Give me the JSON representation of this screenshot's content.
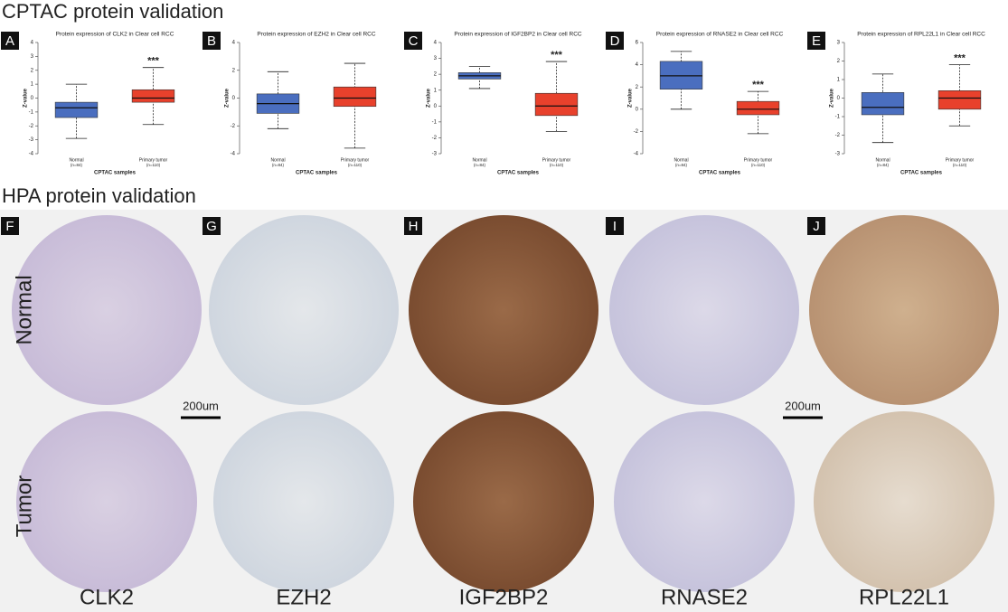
{
  "headings": {
    "cptac": "CPTAC protein validation",
    "hpa": "HPA protein validation"
  },
  "chart_data": [
    {
      "type": "box",
      "panel": "A",
      "title": "Protein expression of CLK2 in Clear cell RCC",
      "ylabel": "Z-value",
      "xlabel": "CPTAC samples",
      "categories": [
        "Normal",
        "Primary tumor"
      ],
      "n_labels": [
        "(n=84)",
        "(n=110)"
      ],
      "colors": [
        "#4a6ebf",
        "#e8412c"
      ],
      "boxes": [
        {
          "min": -2.9,
          "q1": -1.4,
          "median": -0.7,
          "q3": -0.3,
          "max": 1.0
        },
        {
          "min": -1.9,
          "q1": -0.3,
          "median": 0,
          "q3": 0.6,
          "max": 2.2
        }
      ],
      "significance": "***",
      "ylim": [
        -4,
        4
      ],
      "yticks": [
        -4,
        -3,
        -2,
        -1,
        0,
        1,
        2,
        3,
        4
      ]
    },
    {
      "type": "box",
      "panel": "B",
      "title": "Protein expression of EZH2 in Clear cell RCC",
      "ylabel": "Z-value",
      "xlabel": "CPTAC samples",
      "categories": [
        "Normal",
        "Primary tumor"
      ],
      "n_labels": [
        "(n=84)",
        "(n=110)"
      ],
      "colors": [
        "#4a6ebf",
        "#e8412c"
      ],
      "boxes": [
        {
          "min": -2.2,
          "q1": -1.1,
          "median": -0.4,
          "q3": 0.3,
          "max": 1.9
        },
        {
          "min": -3.6,
          "q1": -0.6,
          "median": 0,
          "q3": 0.8,
          "max": 2.5
        }
      ],
      "ylim": [
        -4,
        4
      ],
      "yticks": [
        -4,
        -2,
        0,
        2,
        4
      ]
    },
    {
      "type": "box",
      "panel": "C",
      "title": "Protein expression of IGF2BP2 in Clear cell RCC",
      "ylabel": "Z-value",
      "xlabel": "CPTAC samples",
      "categories": [
        "Normal",
        "Primary tumor"
      ],
      "n_labels": [
        "(n=84)",
        "(n=110)"
      ],
      "colors": [
        "#4a6ebf",
        "#e8412c"
      ],
      "boxes": [
        {
          "min": 1.1,
          "q1": 1.7,
          "median": 1.9,
          "q3": 2.1,
          "max": 2.5
        },
        {
          "min": -1.6,
          "q1": -0.6,
          "median": 0,
          "q3": 0.8,
          "max": 2.8
        }
      ],
      "significance": "***",
      "ylim": [
        -3,
        4
      ],
      "yticks": [
        -3,
        -2,
        -1,
        0,
        1,
        2,
        3,
        4
      ]
    },
    {
      "type": "box",
      "panel": "D",
      "title": "Protein expression of RNASE2 in Clear cell RCC",
      "ylabel": "Z-value",
      "xlabel": "CPTAC samples",
      "categories": [
        "Normal",
        "Primary tumor"
      ],
      "n_labels": [
        "(n=84)",
        "(n=110)"
      ],
      "colors": [
        "#4a6ebf",
        "#e8412c"
      ],
      "boxes": [
        {
          "min": 0,
          "q1": 1.8,
          "median": 3,
          "q3": 4.3,
          "max": 5.2
        },
        {
          "min": -2.2,
          "q1": -0.5,
          "median": 0,
          "q3": 0.7,
          "max": 1.6
        }
      ],
      "significance": "***",
      "ylim": [
        -4,
        6
      ],
      "yticks": [
        -4,
        -2,
        0,
        2,
        4,
        6
      ]
    },
    {
      "type": "box",
      "panel": "E",
      "title": "Protein expression of RPL22L1 in Clear cell RCC",
      "ylabel": "Z-value",
      "xlabel": "CPTAC samples",
      "categories": [
        "Normal",
        "Primary tumor"
      ],
      "n_labels": [
        "(n=84)",
        "(n=110)"
      ],
      "colors": [
        "#4a6ebf",
        "#e8412c"
      ],
      "boxes": [
        {
          "min": -2.4,
          "q1": -0.9,
          "median": -0.5,
          "q3": 0.3,
          "max": 1.3
        },
        {
          "min": -1.5,
          "q1": -0.6,
          "median": 0,
          "q3": 0.4,
          "max": 1.8
        }
      ],
      "significance": "***",
      "ylim": [
        -3,
        3
      ],
      "yticks": [
        -3,
        -2,
        -1,
        0,
        1,
        2,
        3
      ]
    }
  ],
  "hpa": {
    "panels": [
      "F",
      "G",
      "H",
      "I",
      "J"
    ],
    "rows": [
      "Normal",
      "Tumor"
    ],
    "genes": [
      "CLK2",
      "EZH2",
      "IGF2BP2",
      "RNASE2",
      "RPL22L1"
    ],
    "scale_bars": [
      "200um",
      "200um"
    ]
  }
}
